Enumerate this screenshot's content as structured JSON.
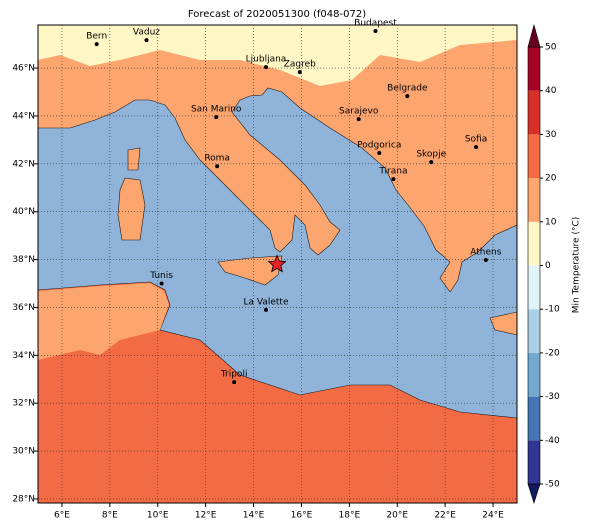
{
  "title": "Forecast of 2020051300 (f048-072)",
  "map": {
    "lonlim": [
      5,
      25
    ],
    "latlim": [
      27.83,
      47.8
    ],
    "lonticks": [
      {
        "value": 6,
        "label": "6°E"
      },
      {
        "value": 8,
        "label": "8°E"
      },
      {
        "value": 10,
        "label": "10°E"
      },
      {
        "value": 12,
        "label": "12°E"
      },
      {
        "value": 14,
        "label": "14°E"
      },
      {
        "value": 16,
        "label": "16°E"
      },
      {
        "value": 18,
        "label": "18°E"
      },
      {
        "value": 20,
        "label": "20°E"
      },
      {
        "value": 22,
        "label": "22°E"
      },
      {
        "value": 24,
        "label": "24°E"
      }
    ],
    "latticks": [
      {
        "value": 28,
        "label": "28°N"
      },
      {
        "value": 30,
        "label": "30°N"
      },
      {
        "value": 32,
        "label": "32°N"
      },
      {
        "value": 34,
        "label": "34°N"
      },
      {
        "value": 36,
        "label": "36°N"
      },
      {
        "value": 38,
        "label": "38°N"
      },
      {
        "value": 40,
        "label": "40°N"
      },
      {
        "value": 42,
        "label": "42°N"
      },
      {
        "value": 44,
        "label": "44°N"
      },
      {
        "value": 46,
        "label": "46°N"
      }
    ],
    "grid": true,
    "cities": [
      {
        "name": "Bern",
        "lon": 7.45,
        "lat": 47.0
      },
      {
        "name": "Vaduz",
        "lon": 9.53,
        "lat": 47.17
      },
      {
        "name": "Budapest",
        "lon": 19.09,
        "lat": 47.55
      },
      {
        "name": "Ljubljana",
        "lon": 14.52,
        "lat": 46.04
      },
      {
        "name": "Zagreb",
        "lon": 15.93,
        "lat": 45.83
      },
      {
        "name": "Belgrade",
        "lon": 20.42,
        "lat": 44.83
      },
      {
        "name": "San Marino",
        "lon": 12.44,
        "lat": 43.95
      },
      {
        "name": "Sarajevo",
        "lon": 18.39,
        "lat": 43.87
      },
      {
        "name": "Sofia",
        "lon": 23.29,
        "lat": 42.7
      },
      {
        "name": "Podgorica",
        "lon": 19.25,
        "lat": 42.45
      },
      {
        "name": "Skopje",
        "lon": 21.42,
        "lat": 42.07
      },
      {
        "name": "Roma",
        "lon": 12.48,
        "lat": 41.9
      },
      {
        "name": "Tirana",
        "lon": 19.84,
        "lat": 41.36
      },
      {
        "name": "Athens",
        "lon": 23.7,
        "lat": 37.98
      },
      {
        "name": "Tunis",
        "lon": 10.16,
        "lat": 37.0
      },
      {
        "name": "La Valette",
        "lon": 14.52,
        "lat": 35.9
      },
      {
        "name": "Tripoli",
        "lon": 13.19,
        "lat": 32.88
      }
    ],
    "star": {
      "lon": 14.98,
      "lat": 37.8,
      "color": "#e8202a"
    }
  },
  "colorbar": {
    "label": "Min Temperature (°C)",
    "ticks": [
      -50,
      -40,
      -30,
      -20,
      -10,
      0,
      10,
      20,
      30,
      40,
      50
    ],
    "colors": [
      "#313695",
      "#4575b4",
      "#74a9cf",
      "#abd0e6",
      "#e0f3f8",
      "#fef6c4",
      "#fca56e",
      "#f26b45",
      "#d73027",
      "#a50026"
    ],
    "under_color": "#141a60",
    "over_color": "#67001f"
  }
}
